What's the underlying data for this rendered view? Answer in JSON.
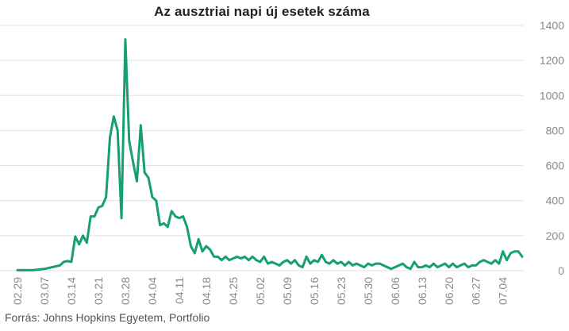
{
  "chart_data": {
    "type": "line",
    "title": "Az ausztriai napi új esetek száma",
    "source": "Forrás: Johns Hopkins Egyetem, Portfolio",
    "color": "#16a06e",
    "ylim": [
      0,
      1400
    ],
    "yticks": [
      0,
      200,
      400,
      600,
      800,
      1000,
      1200,
      1400
    ],
    "grid": true,
    "y_axis_side": "right",
    "xtick_labels": [
      "02.29",
      "03.07",
      "03.14",
      "03.21",
      "03.28",
      "04.04",
      "04.11",
      "04.18",
      "04.25",
      "05.02",
      "05.09",
      "05.16",
      "05.23",
      "05.30",
      "06.06",
      "06.13",
      "06.20",
      "06.27",
      "07.04"
    ],
    "x_start": "02.29",
    "values": [
      3,
      3,
      3,
      3,
      3,
      5,
      8,
      10,
      15,
      20,
      25,
      30,
      50,
      55,
      50,
      195,
      150,
      200,
      160,
      310,
      310,
      360,
      370,
      420,
      760,
      880,
      800,
      300,
      1320,
      740,
      620,
      510,
      830,
      560,
      530,
      420,
      400,
      260,
      270,
      250,
      340,
      310,
      300,
      310,
      250,
      140,
      100,
      180,
      110,
      140,
      120,
      80,
      80,
      60,
      80,
      60,
      70,
      80,
      70,
      80,
      60,
      80,
      60,
      50,
      80,
      40,
      50,
      40,
      30,
      50,
      60,
      40,
      60,
      30,
      20,
      80,
      40,
      60,
      50,
      90,
      50,
      40,
      60,
      40,
      50,
      30,
      50,
      30,
      40,
      30,
      20,
      40,
      30,
      40,
      40,
      30,
      20,
      10,
      20,
      30,
      40,
      20,
      10,
      50,
      20,
      20,
      30,
      20,
      40,
      20,
      30,
      40,
      20,
      40,
      20,
      30,
      40,
      20,
      30,
      30,
      50,
      60,
      50,
      40,
      60,
      40,
      110,
      60,
      100,
      110,
      110,
      80
    ]
  }
}
